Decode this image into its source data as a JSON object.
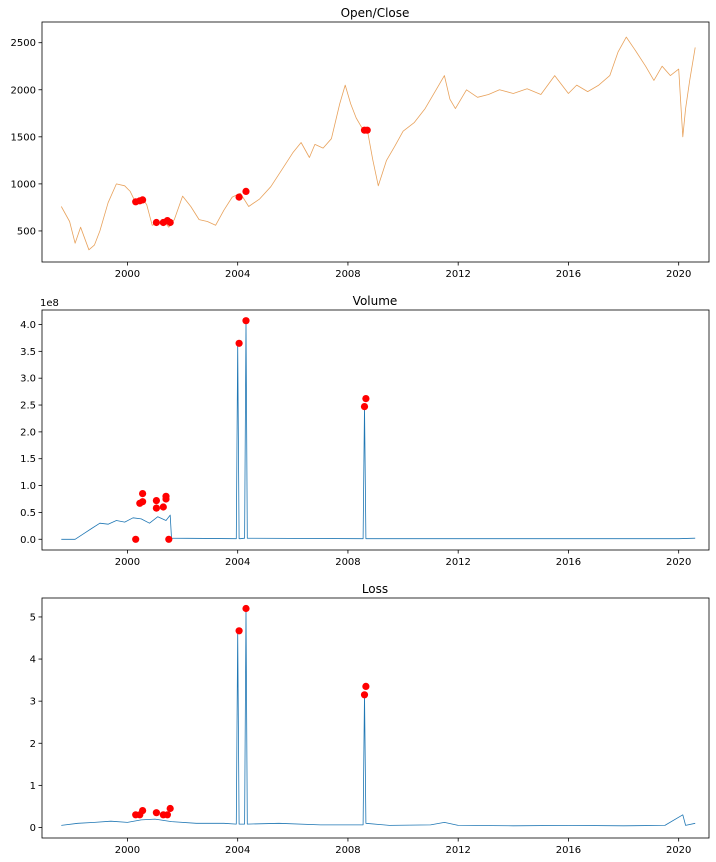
{
  "chart_data": [
    {
      "type": "line",
      "title": "Open/Close",
      "xlim": [
        1996.9,
        2021.1
      ],
      "ylim": [
        170,
        2720
      ],
      "xticks": [
        2000,
        2004,
        2008,
        2012,
        2016,
        2020
      ],
      "yticks": [
        500,
        1000,
        1500,
        2000,
        2500
      ],
      "xtick_labels": [
        "2000",
        "2004",
        "2008",
        "2012",
        "2016",
        "2020"
      ],
      "ytick_labels": [
        "500",
        "1000",
        "1500",
        "2000",
        "2500"
      ],
      "series": [
        {
          "color": "#e8a25c",
          "x": [
            1997.6,
            1997.9,
            1998.1,
            1998.3,
            1998.6,
            1998.8,
            1999.0,
            1999.3,
            1999.6,
            1999.9,
            2000.1,
            2000.3,
            2000.5,
            2000.7,
            2000.9,
            2001.1,
            2001.3,
            2001.5,
            2001.7,
            2002.0,
            2002.3,
            2002.6,
            2002.9,
            2003.2,
            2003.5,
            2003.8,
            2004.1,
            2004.4,
            2004.8,
            2005.2,
            2005.6,
            2006.0,
            2006.3,
            2006.6,
            2006.8,
            2007.1,
            2007.4,
            2007.7,
            2007.9,
            2008.1,
            2008.3,
            2008.5,
            2008.7,
            2008.9,
            2009.1,
            2009.4,
            2009.7,
            2010.0,
            2010.4,
            2010.8,
            2011.2,
            2011.5,
            2011.7,
            2011.9,
            2012.3,
            2012.7,
            2013.1,
            2013.5,
            2014.0,
            2014.5,
            2015.0,
            2015.5,
            2016.0,
            2016.3,
            2016.7,
            2017.1,
            2017.5,
            2017.8,
            2018.1,
            2018.4,
            2018.8,
            2019.1,
            2019.4,
            2019.7,
            2020.0,
            2020.15,
            2020.25,
            2020.4,
            2020.6
          ],
          "values": [
            760,
            600,
            370,
            540,
            300,
            350,
            500,
            800,
            1000,
            980,
            920,
            800,
            860,
            780,
            560,
            580,
            610,
            540,
            620,
            870,
            760,
            620,
            600,
            560,
            720,
            860,
            900,
            760,
            840,
            970,
            1150,
            1330,
            1440,
            1280,
            1420,
            1380,
            1480,
            1850,
            2050,
            1850,
            1700,
            1600,
            1580,
            1260,
            980,
            1250,
            1400,
            1560,
            1650,
            1800,
            2000,
            2150,
            1900,
            1800,
            2000,
            1920,
            1950,
            2000,
            1960,
            2010,
            1950,
            2150,
            1960,
            2050,
            1980,
            2050,
            2150,
            2400,
            2560,
            2430,
            2250,
            2100,
            2250,
            2150,
            2220,
            1500,
            1800,
            2100,
            2450
          ]
        }
      ],
      "markers": {
        "color": "#ff0000",
        "x": [
          2000.3,
          2000.45,
          2000.55,
          2001.05,
          2001.3,
          2001.45,
          2001.55,
          2004.05,
          2004.3,
          2008.6,
          2008.7
        ],
        "values": [
          810,
          820,
          830,
          590,
          590,
          610,
          590,
          860,
          920,
          1570,
          1570
        ]
      }
    },
    {
      "type": "line",
      "title": "Volume",
      "offset_text": "1e8",
      "xlim": [
        1996.9,
        2021.1
      ],
      "ylim": [
        -0.2,
        4.27
      ],
      "xticks": [
        2000,
        2004,
        2008,
        2012,
        2016,
        2020
      ],
      "yticks": [
        0.0,
        0.5,
        1.0,
        1.5,
        2.0,
        2.5,
        3.0,
        3.5,
        4.0
      ],
      "xtick_labels": [
        "2000",
        "2004",
        "2008",
        "2012",
        "2016",
        "2020"
      ],
      "ytick_labels": [
        "0.0",
        "0.5",
        "1.0",
        "1.5",
        "2.0",
        "2.5",
        "3.0",
        "3.5",
        "4.0"
      ],
      "series": [
        {
          "color": "#1f77b4",
          "x": [
            1997.6,
            1998.1,
            1998.4,
            1998.7,
            1999.0,
            1999.3,
            1999.6,
            1999.9,
            2000.2,
            2000.5,
            2000.8,
            2001.1,
            2001.4,
            2001.55,
            2001.6,
            2003.95,
            2004.0,
            2004.05,
            2004.1,
            2004.25,
            2004.3,
            2004.35,
            2008.55,
            2008.6,
            2008.65,
            2009.5,
            2012.0,
            2016.0,
            2020.0,
            2020.6
          ],
          "values": [
            0.0,
            0.0,
            0.1,
            0.2,
            0.3,
            0.28,
            0.35,
            0.32,
            0.4,
            0.38,
            0.3,
            0.42,
            0.35,
            0.45,
            0.02,
            0.01,
            3.65,
            0.01,
            0.01,
            0.02,
            4.07,
            0.02,
            0.01,
            2.5,
            0.01,
            0.01,
            0.01,
            0.01,
            0.01,
            0.02
          ]
        }
      ],
      "markers": {
        "color": "#ff0000",
        "x": [
          2000.3,
          2000.45,
          2000.55,
          2000.55,
          2001.05,
          2001.05,
          2001.3,
          2001.4,
          2001.4,
          2001.5,
          2004.05,
          2004.3,
          2008.6,
          2008.65
        ],
        "values": [
          0.0,
          0.67,
          0.7,
          0.85,
          0.58,
          0.72,
          0.6,
          0.75,
          0.8,
          0.0,
          3.65,
          4.07,
          2.47,
          2.62
        ]
      }
    },
    {
      "type": "line",
      "title": "Loss",
      "xlim": [
        1996.9,
        2021.1
      ],
      "ylim": [
        -0.25,
        5.45
      ],
      "xticks": [
        2000,
        2004,
        2008,
        2012,
        2016,
        2020
      ],
      "yticks": [
        0,
        1,
        2,
        3,
        4,
        5
      ],
      "xtick_labels": [
        "2000",
        "2004",
        "2008",
        "2012",
        "2016",
        "2020"
      ],
      "ytick_labels": [
        "0",
        "1",
        "2",
        "3",
        "4",
        "5"
      ],
      "series": [
        {
          "color": "#1f77b4",
          "x": [
            1997.6,
            1998.2,
            1998.8,
            1999.4,
            2000.0,
            2000.5,
            2001.0,
            2001.6,
            2002.5,
            2003.5,
            2003.95,
            2004.0,
            2004.05,
            2004.25,
            2004.3,
            2004.35,
            2005.5,
            2007.0,
            2008.55,
            2008.6,
            2008.65,
            2009.5,
            2011.0,
            2011.5,
            2012.0,
            2014.0,
            2016.0,
            2018.0,
            2019.5,
            2020.15,
            2020.25,
            2020.6
          ],
          "values": [
            0.05,
            0.1,
            0.12,
            0.15,
            0.12,
            0.18,
            0.2,
            0.14,
            0.1,
            0.1,
            0.08,
            4.67,
            0.08,
            0.08,
            5.2,
            0.08,
            0.1,
            0.06,
            0.06,
            3.2,
            0.1,
            0.05,
            0.06,
            0.12,
            0.05,
            0.04,
            0.05,
            0.04,
            0.05,
            0.3,
            0.05,
            0.1
          ]
        }
      ],
      "markers": {
        "color": "#ff0000",
        "x": [
          2000.3,
          2000.45,
          2000.55,
          2001.05,
          2001.3,
          2001.45,
          2001.55,
          2004.05,
          2004.3,
          2008.6,
          2008.65
        ],
        "values": [
          0.3,
          0.3,
          0.4,
          0.35,
          0.3,
          0.3,
          0.45,
          4.67,
          5.2,
          3.15,
          3.35
        ]
      }
    }
  ]
}
